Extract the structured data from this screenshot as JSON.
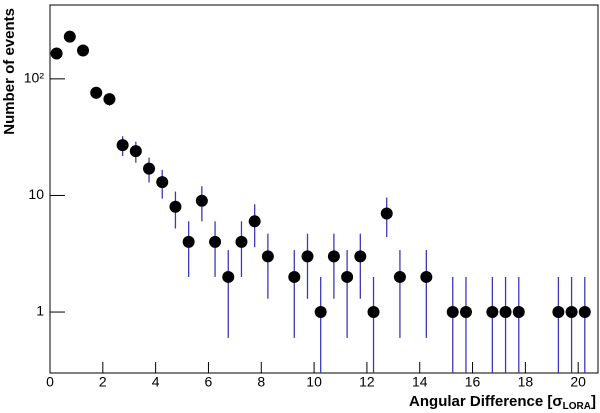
{
  "chart_data": {
    "type": "scatter",
    "x_label": "Angular Difference [σ",
    "x_label_sub": "LORA",
    "x_label_end": "]",
    "y_label": "Number of events",
    "log_y": true,
    "xlim": [
      0,
      20.75
    ],
    "ylim": [
      0.3,
      430
    ],
    "xticks": [
      0,
      2,
      4,
      6,
      8,
      10,
      12,
      14,
      16,
      18,
      20
    ],
    "yticks": [
      1,
      10,
      {
        "value": 100,
        "label": "10²"
      }
    ],
    "marker_color": "#000000",
    "error_color": "#3a3ab8",
    "series": [
      {
        "name": "events",
        "x": [
          0.25,
          0.75,
          1.25,
          1.75,
          2.25,
          2.75,
          3.25,
          3.75,
          4.25,
          4.75,
          5.25,
          5.75,
          6.25,
          6.75,
          7.25,
          7.75,
          8.25,
          9.25,
          9.75,
          10.25,
          10.75,
          11.25,
          11.75,
          12.25,
          12.75,
          13.25,
          14.25,
          15.25,
          15.75,
          16.75,
          17.25,
          17.75,
          19.25,
          19.75,
          20.25
        ],
        "values": [
          165,
          230,
          175,
          76,
          67,
          27,
          24,
          17,
          13,
          8,
          4,
          9,
          4,
          2,
          4,
          6,
          3,
          2,
          3,
          1,
          3,
          2,
          3,
          1,
          7,
          2,
          2,
          1,
          1,
          1,
          1,
          1,
          1,
          1,
          1
        ],
        "errors": [
          12.8,
          15.2,
          13.2,
          8.7,
          8.2,
          5.2,
          4.9,
          4.1,
          3.6,
          2.8,
          2,
          3,
          2,
          1.4,
          2,
          2.4,
          1.7,
          1.4,
          1.7,
          1,
          1.7,
          1.4,
          1.7,
          1,
          2.6,
          1.4,
          1.4,
          1,
          1,
          1,
          1,
          1,
          1,
          1,
          1
        ]
      }
    ]
  }
}
